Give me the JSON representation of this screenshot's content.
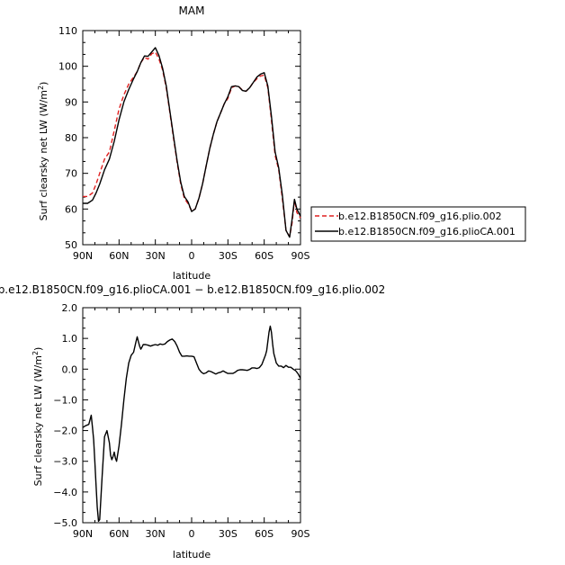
{
  "chart_data": [
    {
      "type": "line",
      "title": "MAM",
      "xlabel": "latitude",
      "ylabel": "Surf clearsky net LW (W/m²)",
      "xlim": [
        90,
        -90
      ],
      "ylim": [
        50,
        110
      ],
      "x_ticks": [
        {
          "value": 90,
          "label": "90N"
        },
        {
          "value": 60,
          "label": "60N"
        },
        {
          "value": 30,
          "label": "30N"
        },
        {
          "value": 0,
          "label": "0"
        },
        {
          "value": -30,
          "label": "30S"
        },
        {
          "value": -60,
          "label": "60S"
        },
        {
          "value": -90,
          "label": "90S"
        }
      ],
      "y_ticks": [
        50,
        60,
        70,
        80,
        90,
        100,
        110
      ],
      "legend_position": "right",
      "series": [
        {
          "name": "b.e12.B1850CN.f09_g16.plio.002",
          "color": "#e02020",
          "dash": "dashed",
          "x": [
            90,
            86,
            82,
            79,
            76,
            72,
            68,
            64,
            60,
            56,
            52,
            48,
            45,
            42,
            39,
            36,
            33,
            30,
            27,
            24,
            21,
            18,
            15,
            12,
            9,
            6,
            3,
            0,
            -3,
            -6,
            -9,
            -12,
            -15,
            -18,
            -21,
            -24,
            -27,
            -30,
            -33,
            -36,
            -39,
            -42,
            -45,
            -48,
            -51,
            -54,
            -57,
            -60,
            -63,
            -66,
            -69,
            -72,
            -75,
            -78,
            -81,
            -83,
            -85,
            -87,
            -90
          ],
          "y": [
            63.5,
            63.5,
            64.5,
            67,
            70,
            74,
            76,
            82,
            88,
            92,
            95,
            97,
            98.5,
            101,
            102.5,
            102,
            103.5,
            104,
            102,
            99,
            94,
            87,
            80,
            73,
            67,
            63,
            61.5,
            59.5,
            60,
            63,
            67,
            72,
            77,
            81,
            84.5,
            87,
            89.5,
            91,
            94,
            94.5,
            94.3,
            93.3,
            93,
            94,
            95.5,
            96.5,
            97.3,
            97.5,
            94,
            85,
            75,
            71,
            63,
            54,
            52.3,
            56,
            62.5,
            59,
            57.5
          ]
        },
        {
          "name": "b.e12.B1850CN.f09_g16.plioCA.001",
          "color": "#000000",
          "dash": "solid",
          "x": [
            90,
            86,
            82,
            79,
            76,
            72,
            68,
            64,
            60,
            56,
            52,
            48,
            45,
            42,
            39,
            36,
            33,
            30,
            27,
            24,
            21,
            18,
            15,
            12,
            9,
            6,
            3,
            0,
            -3,
            -6,
            -9,
            -12,
            -15,
            -18,
            -21,
            -24,
            -27,
            -30,
            -33,
            -36,
            -39,
            -42,
            -45,
            -48,
            -51,
            -54,
            -57,
            -60,
            -63,
            -66,
            -69,
            -72,
            -75,
            -78,
            -81,
            -83,
            -85,
            -87,
            -90
          ],
          "y": [
            61.6,
            61.6,
            62.5,
            64.5,
            67,
            71,
            74,
            79,
            85,
            90,
            93.5,
            96.5,
            98.5,
            101,
            102.9,
            102.8,
            104,
            105.2,
            103,
            99.5,
            94.5,
            87.5,
            80.5,
            73.5,
            67.5,
            63.5,
            62,
            59.3,
            60,
            63,
            67,
            72,
            77,
            81,
            84.5,
            87,
            89.5,
            91.5,
            94.3,
            94.5,
            94.3,
            93.2,
            93,
            94,
            95.5,
            97,
            97.8,
            98.2,
            94.5,
            86,
            76,
            71.5,
            64,
            54,
            52.1,
            57,
            62.7,
            60,
            58
          ]
        }
      ]
    },
    {
      "type": "line",
      "title": "b.e12.B1850CN.f09_g16.plioCA.001 − b.e12.B1850CN.f09_g16.plio.002",
      "xlabel": "latitude",
      "ylabel": "Surf clearsky net LW (W/m²)",
      "xlim": [
        90,
        -90
      ],
      "ylim": [
        -5,
        2
      ],
      "x_ticks": [
        {
          "value": 90,
          "label": "90N"
        },
        {
          "value": 60,
          "label": "60N"
        },
        {
          "value": 30,
          "label": "30N"
        },
        {
          "value": 0,
          "label": "0"
        },
        {
          "value": -30,
          "label": "30S"
        },
        {
          "value": -60,
          "label": "60S"
        },
        {
          "value": -90,
          "label": "90S"
        }
      ],
      "y_ticks": [
        {
          "value": 2,
          "label": "2.0"
        },
        {
          "value": 1,
          "label": "1.0"
        },
        {
          "value": 0,
          "label": "0.0"
        },
        {
          "value": -1,
          "label": "−1.0"
        },
        {
          "value": -2,
          "label": "−2.0"
        },
        {
          "value": -3,
          "label": "−3.0"
        },
        {
          "value": -4,
          "label": "−4.0"
        },
        {
          "value": -5,
          "label": "−5.0"
        }
      ],
      "series": [
        {
          "color": "#000000",
          "dash": "solid",
          "x": [
            90,
            88,
            85,
            83,
            82,
            81,
            80,
            79,
            78,
            77,
            76,
            74,
            72,
            70,
            68,
            67,
            66,
            65,
            64,
            63,
            62,
            60,
            58,
            56,
            54,
            52,
            50,
            48,
            46,
            45,
            44,
            43,
            42,
            41,
            40,
            38,
            36,
            34,
            32,
            30,
            28,
            26,
            24,
            22,
            20,
            18,
            16,
            14,
            12,
            10,
            8,
            6,
            4,
            2,
            0,
            -2,
            -4,
            -6,
            -8,
            -10,
            -12,
            -14,
            -16,
            -18,
            -20,
            -22,
            -24,
            -26,
            -28,
            -30,
            -32,
            -34,
            -36,
            -38,
            -40,
            -42,
            -44,
            -46,
            -48,
            -50,
            -52,
            -54,
            -56,
            -58,
            -60,
            -61,
            -62,
            -63,
            -64,
            -65,
            -66,
            -67,
            -68,
            -69,
            -70,
            -72,
            -74,
            -76,
            -78,
            -80,
            -82,
            -84,
            -86,
            -88,
            -90
          ],
          "y": [
            -1.9,
            -1.85,
            -1.8,
            -1.5,
            -1.9,
            -2.3,
            -3.0,
            -3.8,
            -4.5,
            -4.95,
            -4.9,
            -3.5,
            -2.2,
            -2.0,
            -2.4,
            -2.8,
            -2.95,
            -2.85,
            -2.7,
            -2.9,
            -3.0,
            -2.5,
            -1.8,
            -1.0,
            -0.3,
            0.2,
            0.45,
            0.55,
            0.9,
            1.05,
            0.9,
            0.75,
            0.65,
            0.72,
            0.8,
            0.8,
            0.78,
            0.75,
            0.78,
            0.8,
            0.78,
            0.82,
            0.8,
            0.82,
            0.9,
            0.95,
            0.98,
            0.9,
            0.75,
            0.55,
            0.42,
            0.42,
            0.43,
            0.42,
            0.42,
            0.4,
            0.2,
            0.0,
            -0.1,
            -0.15,
            -0.12,
            -0.06,
            -0.08,
            -0.12,
            -0.16,
            -0.12,
            -0.1,
            -0.06,
            -0.1,
            -0.14,
            -0.14,
            -0.14,
            -0.1,
            -0.04,
            -0.02,
            -0.02,
            -0.03,
            -0.04,
            -0.01,
            0.04,
            0.04,
            0.02,
            0.05,
            0.15,
            0.35,
            0.45,
            0.6,
            0.9,
            1.2,
            1.4,
            1.2,
            0.8,
            0.5,
            0.35,
            0.2,
            0.1,
            0.1,
            0.05,
            0.12,
            0.06,
            0.06,
            0.0,
            -0.05,
            -0.15,
            -0.3
          ]
        }
      ]
    }
  ]
}
